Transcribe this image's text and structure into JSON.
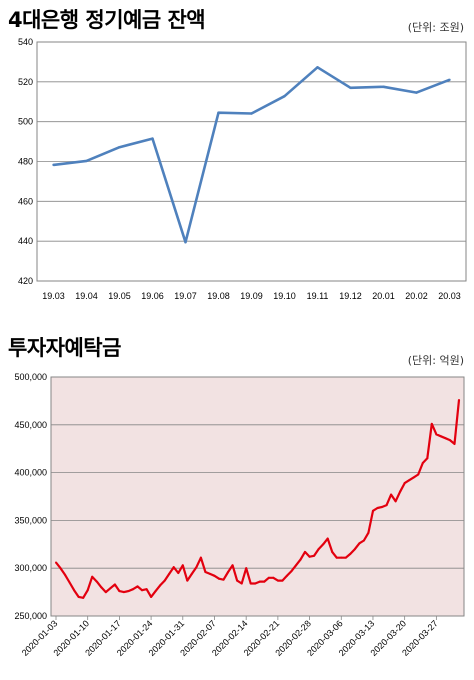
{
  "chart1": {
    "title": "4대은행 정기예금 잔액",
    "unit": "(단위: 조원)"
  },
  "chart2": {
    "title": "투자자예탁금",
    "unit": "(단위: 억원)"
  },
  "chart_data": [
    {
      "type": "line",
      "title": "4대은행 정기예금 잔액",
      "unit": "(단위: 조원)",
      "categories": [
        "19.03",
        "19.04",
        "19.05",
        "19.06",
        "19.07",
        "19.08",
        "19.09",
        "19.10",
        "19.11",
        "19.12",
        "20.01",
        "20.02",
        "20.03"
      ],
      "values": [
        478.3,
        480.3,
        487.2,
        491.5,
        439.5,
        504.5,
        504.1,
        512.8,
        527.3,
        517.0,
        517.5,
        514.6,
        521.0
      ],
      "yticks": [
        420,
        440,
        460,
        480,
        500,
        520,
        540
      ],
      "ylim": [
        420,
        540
      ],
      "grid": true,
      "color": "#4f81bd"
    },
    {
      "type": "line",
      "title": "투자자예탁금",
      "unit": "(단위: 억원)",
      "xticks": [
        "2020-01-03",
        "2020-01-10",
        "2020-01-17",
        "2020-01-24",
        "2020-01-31",
        "2020-02-07",
        "2020-02-14",
        "2020-02-21",
        "2020-02-28",
        "2020-03-06",
        "2020-03-13",
        "2020-03-20",
        "2020-03-27"
      ],
      "values": [
        306000,
        300000,
        293000,
        285000,
        277000,
        270000,
        269000,
        277000,
        291000,
        286000,
        280000,
        275000,
        279000,
        283000,
        276000,
        275000,
        276000,
        278000,
        281000,
        277000,
        278000,
        270000,
        276000,
        282000,
        287000,
        294000,
        301000,
        295000,
        303000,
        287000,
        294000,
        301000,
        311000,
        296000,
        294000,
        292000,
        289000,
        288000,
        296000,
        303000,
        287000,
        284000,
        300000,
        284000,
        284000,
        286000,
        286000,
        290000,
        290000,
        287000,
        287000,
        292000,
        297000,
        303000,
        309000,
        317000,
        312000,
        313000,
        320000,
        325000,
        331000,
        317000,
        311000,
        311000,
        311000,
        315000,
        320000,
        326000,
        329000,
        337000,
        360000,
        363000,
        364000,
        366000,
        377000,
        370000,
        380000,
        389000,
        392000,
        395000,
        398000,
        410000,
        415000,
        451000,
        440000,
        438000,
        436000,
        434000,
        430000,
        476000
      ],
      "yticks": [
        250000,
        300000,
        350000,
        400000,
        450000,
        500000
      ],
      "ytick_labels": [
        "250,000",
        "300,000",
        "350,000",
        "400,000",
        "450,000",
        "500,000"
      ],
      "ylim": [
        250000,
        500000
      ],
      "grid": true,
      "color": "#e3000f",
      "plot_background": "#f2e2e2"
    }
  ]
}
